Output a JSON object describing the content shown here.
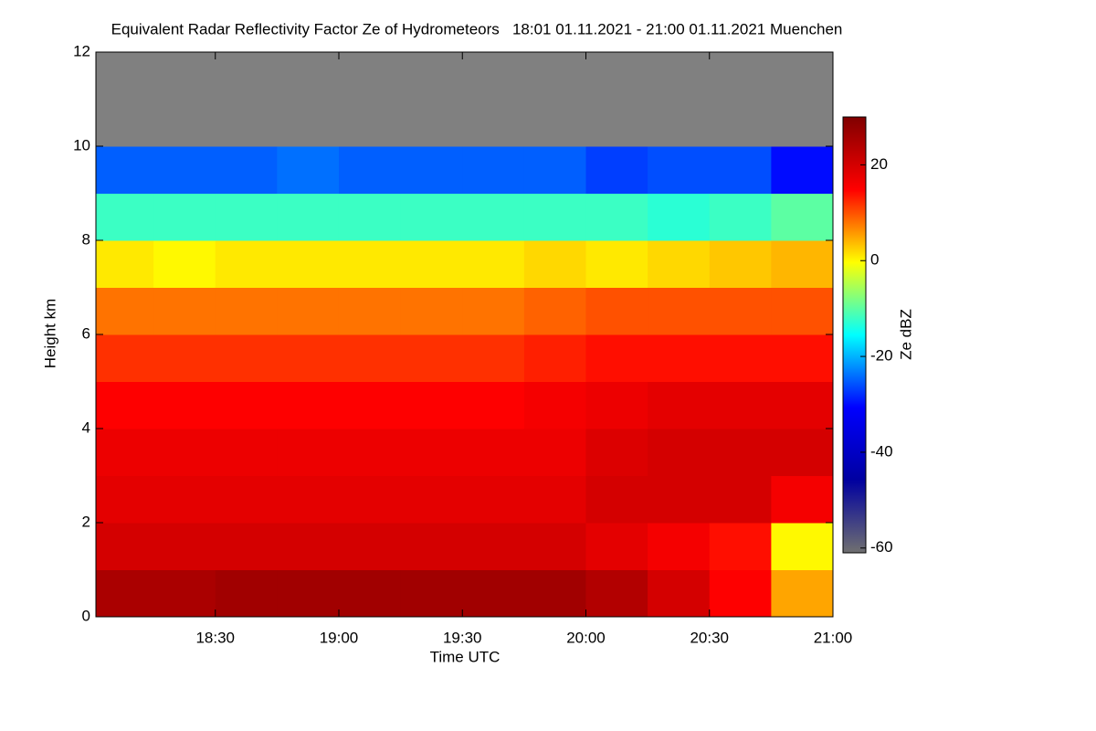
{
  "chart_data": {
    "type": "heatmap",
    "title": "Equivalent Radar Reflectivity Factor Ze of Hydrometeors   18:01 01.11.2021 - 21:00 01.11.2021 Muenchen",
    "x_label": "Time UTC",
    "y_label": "Height km",
    "colorbar_label": "Ze dBZ",
    "x_edges": [
      "18:01",
      "18:15",
      "18:30",
      "18:45",
      "19:00",
      "19:15",
      "19:30",
      "19:45",
      "20:00",
      "20:15",
      "20:30",
      "20:45",
      "21:00"
    ],
    "y_edges": [
      0,
      1,
      2,
      3,
      4,
      5,
      6,
      7,
      8,
      9,
      10,
      11,
      12
    ],
    "z": [
      [
        25,
        25,
        26,
        26,
        26,
        26,
        26,
        26,
        24,
        20,
        15,
        5
      ],
      [
        20,
        20,
        20,
        20,
        20,
        20,
        20,
        20,
        18,
        16,
        14,
        0
      ],
      [
        18,
        18,
        18,
        18,
        18,
        18,
        18,
        18,
        20,
        20,
        20,
        16
      ],
      [
        17,
        17,
        17,
        17,
        17,
        17,
        17,
        17,
        19,
        20,
        20,
        20
      ],
      [
        15,
        15,
        15,
        15,
        15,
        15,
        15,
        16,
        17,
        18,
        18,
        18
      ],
      [
        12,
        12,
        12,
        12,
        12,
        12,
        12,
        13,
        14,
        14,
        14,
        14
      ],
      [
        8,
        8,
        8,
        8,
        8,
        8,
        8,
        9,
        10,
        10,
        10,
        10
      ],
      [
        1,
        0,
        1,
        1,
        1,
        1,
        1,
        2,
        1,
        2,
        3,
        4
      ],
      [
        -12,
        -12,
        -12,
        -12,
        -12,
        -12,
        -12,
        -12,
        -12,
        -13,
        -12,
        -10
      ],
      [
        -25,
        -25,
        -25,
        -24,
        -25,
        -25,
        -25,
        -25,
        -27,
        -26,
        -26,
        -30
      ],
      [
        null,
        null,
        null,
        null,
        null,
        null,
        null,
        null,
        null,
        null,
        null,
        null
      ],
      [
        null,
        null,
        null,
        null,
        null,
        null,
        null,
        null,
        null,
        null,
        null,
        null
      ]
    ],
    "xlim": [
      "18:01",
      "21:00"
    ],
    "xticks": [
      "18:30",
      "19:00",
      "19:30",
      "20:00",
      "20:30",
      "21:00"
    ],
    "ylim": [
      0,
      12
    ],
    "yticks": [
      0,
      2,
      4,
      6,
      8,
      10,
      12
    ],
    "clim": [
      -61,
      30
    ],
    "cticks": [
      -60,
      -40,
      -20,
      0,
      20
    ],
    "colorscale": [
      "#707070",
      "#0000a0",
      "#0000ff",
      "#00ffff",
      "#ffff00",
      "#ff0000",
      "#800000"
    ],
    "missing_color": "#808080"
  }
}
